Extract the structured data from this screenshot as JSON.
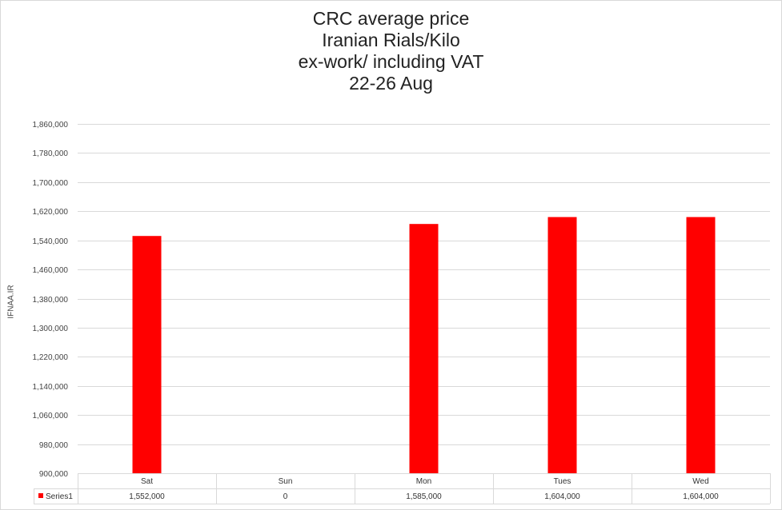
{
  "chart_data": {
    "type": "bar",
    "title_lines": [
      "CRC average price",
      "Iranian Rials/Kilo",
      "ex-work/ including VAT",
      "22-26 Aug"
    ],
    "ylabel": "IFNAA.IR",
    "xlabel": "",
    "categories": [
      "Sat",
      "Sun",
      "Mon",
      "Tues",
      "Wed"
    ],
    "series": [
      {
        "name": "Series1",
        "values": [
          1552000,
          0,
          1585000,
          1604000,
          1604000
        ],
        "value_labels": [
          "1,552,000",
          "0",
          "1,585,000",
          "1,604,000",
          "1,604,000"
        ]
      }
    ],
    "ylim": [
      900000,
      1860000
    ],
    "yticks": [
      "900,000",
      "980,000",
      "1,060,000",
      "1,140,000",
      "1,220,000",
      "1,300,000",
      "1,380,000",
      "1,460,000",
      "1,540,000",
      "1,620,000",
      "1,700,000",
      "1,780,000",
      "1,860,000"
    ],
    "ytick_values": [
      900000,
      980000,
      1060000,
      1140000,
      1220000,
      1300000,
      1380000,
      1460000,
      1540000,
      1620000,
      1700000,
      1780000,
      1860000
    ],
    "grid": true,
    "data_table": true,
    "bar_color": "#ff0000",
    "grid_color": "#d9d9d9"
  }
}
